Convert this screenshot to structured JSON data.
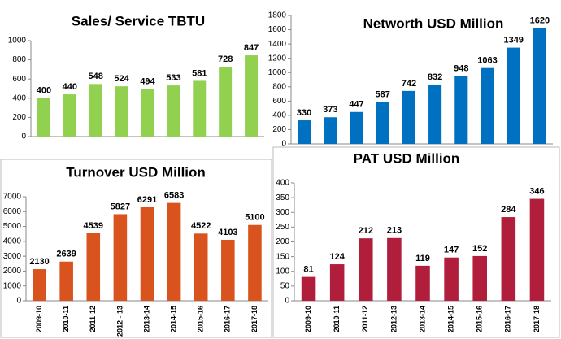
{
  "chart_data": [
    {
      "type": "bar",
      "title": "Sales/ Service TBTU",
      "categories": [
        null,
        null,
        null,
        null,
        null,
        null,
        null,
        null,
        null
      ],
      "values": [
        400,
        440,
        548,
        524,
        494,
        533,
        581,
        728,
        847
      ],
      "color": "#92d050",
      "ylim": [
        0,
        1000
      ],
      "yticks": [
        0,
        200,
        400,
        600,
        800,
        1000
      ]
    },
    {
      "type": "bar",
      "title": "Networth USD Million",
      "categories": [
        null,
        null,
        null,
        null,
        null,
        null,
        null,
        null,
        null,
        null
      ],
      "values": [
        330,
        373,
        447,
        587,
        742,
        832,
        948,
        1063,
        1349,
        1620
      ],
      "color": "#0070c0",
      "ylim": [
        0,
        1800
      ],
      "yticks": [
        0,
        200,
        400,
        600,
        800,
        1000,
        1200,
        1400,
        1600,
        1800
      ]
    },
    {
      "type": "bar",
      "title": "Turnover  USD Million",
      "categories": [
        "2009-10",
        "2010-11",
        "2011-12",
        "2012 - 13",
        "2013-14",
        "2014-15",
        "2015-16",
        "2016-17",
        "2017-18"
      ],
      "values": [
        2130,
        2639,
        4539,
        5827,
        6291,
        6583,
        4522,
        4103,
        5100
      ],
      "color": "#d9531e",
      "ylim": [
        0,
        7000
      ],
      "yticks": [
        0,
        1000,
        2000,
        3000,
        4000,
        5000,
        6000,
        7000
      ]
    },
    {
      "type": "bar",
      "title": "PAT USD Million",
      "categories": [
        "2009-10",
        "2010-11",
        "2011-12",
        "2012-13",
        "2013-14",
        "2014-15",
        "2015-16",
        "2016-17",
        "2017-18"
      ],
      "values": [
        81,
        124,
        212,
        213,
        119,
        147,
        152,
        284,
        346
      ],
      "color": "#b01e3c",
      "ylim": [
        0,
        400
      ],
      "yticks": [
        0,
        50,
        100,
        150,
        200,
        250,
        300,
        350,
        400
      ]
    }
  ]
}
